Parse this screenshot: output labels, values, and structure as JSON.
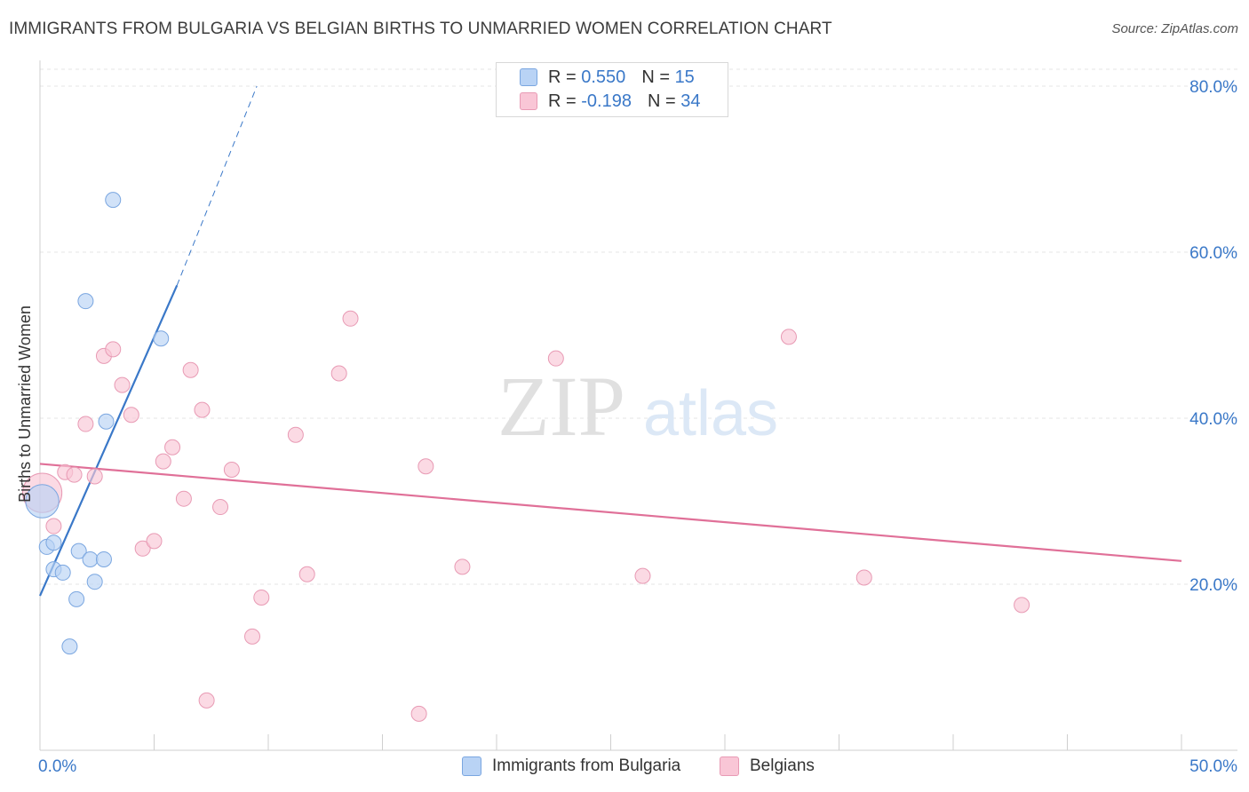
{
  "title": "IMMIGRANTS FROM BULGARIA VS BELGIAN BIRTHS TO UNMARRIED WOMEN CORRELATION CHART",
  "source": "Source: ZipAtlas.com",
  "watermark": {
    "zip": "ZIP",
    "atlas": "atlas"
  },
  "legend_top": {
    "series1": {
      "r_label": "R =",
      "r_value": "0.550",
      "n_label": "N =",
      "n_value": "15"
    },
    "series2": {
      "r_label": "R =",
      "r_value": "-0.198",
      "n_label": "N =",
      "n_value": "34"
    }
  },
  "chart_data": {
    "type": "scatter",
    "title": "IMMIGRANTS FROM BULGARIA VS BELGIAN BIRTHS TO UNMARRIED WOMEN CORRELATION CHART",
    "xlabel": "",
    "ylabel": "Births to Unmarried Women",
    "xlim": [
      0,
      50
    ],
    "ylim": [
      0,
      80
    ],
    "x_tick_labels": [
      "0.0%",
      "50.0%"
    ],
    "y_tick_labels": [
      "20.0%",
      "40.0%",
      "60.0%",
      "80.0%"
    ],
    "y_ticks": [
      20,
      40,
      60,
      80
    ],
    "colors": {
      "series1": "#3a78c8",
      "series2": "#e07098",
      "series1_fill": "#b9d3f5",
      "series2_fill": "#f9c6d6"
    },
    "series": [
      {
        "name": "Immigrants from Bulgaria",
        "r": 0.55,
        "n": 15,
        "trend": {
          "x0": 0.0,
          "y0": 18.6,
          "x1": 6.0,
          "y1": 56.0,
          "dash_to_x": 9.5,
          "dash_to_y": 80.0
        },
        "points": [
          [
            0.1,
            30.0,
            2.2
          ],
          [
            0.3,
            24.5,
            1
          ],
          [
            0.6,
            25.0,
            1
          ],
          [
            0.6,
            21.8,
            1
          ],
          [
            1.0,
            21.4,
            1
          ],
          [
            1.3,
            12.5,
            1
          ],
          [
            1.6,
            18.2,
            1
          ],
          [
            1.7,
            24.0,
            1
          ],
          [
            2.2,
            23.0,
            1
          ],
          [
            2.4,
            20.3,
            1
          ],
          [
            2.8,
            23.0,
            1
          ],
          [
            2.9,
            39.6,
            1
          ],
          [
            3.2,
            66.3,
            1
          ],
          [
            2.0,
            54.1,
            1
          ],
          [
            5.3,
            49.6,
            1
          ]
        ]
      },
      {
        "name": "Belgians",
        "r": -0.198,
        "n": 34,
        "trend": {
          "x0": 0.0,
          "y0": 34.5,
          "x1": 50.0,
          "y1": 22.8
        },
        "points": [
          [
            0.1,
            31.0,
            2.6
          ],
          [
            0.6,
            27.0,
            1
          ],
          [
            1.1,
            33.5,
            1
          ],
          [
            1.5,
            33.2,
            1
          ],
          [
            2.0,
            39.3,
            1
          ],
          [
            2.4,
            33.0,
            1
          ],
          [
            2.8,
            47.5,
            1
          ],
          [
            3.2,
            48.3,
            1
          ],
          [
            3.6,
            44.0,
            1
          ],
          [
            4.0,
            40.4,
            1
          ],
          [
            4.5,
            24.3,
            1
          ],
          [
            5.0,
            25.2,
            1
          ],
          [
            5.4,
            34.8,
            1
          ],
          [
            5.8,
            36.5,
            1
          ],
          [
            6.3,
            30.3,
            1
          ],
          [
            6.6,
            45.8,
            1
          ],
          [
            7.1,
            41.0,
            1
          ],
          [
            7.3,
            6.0,
            1
          ],
          [
            7.9,
            29.3,
            1
          ],
          [
            8.4,
            33.8,
            1
          ],
          [
            9.3,
            13.7,
            1
          ],
          [
            9.7,
            18.4,
            1
          ],
          [
            11.2,
            38.0,
            1
          ],
          [
            11.7,
            21.2,
            1
          ],
          [
            13.1,
            45.4,
            1
          ],
          [
            13.6,
            52.0,
            1
          ],
          [
            16.6,
            4.4,
            1
          ],
          [
            16.9,
            34.2,
            1
          ],
          [
            18.5,
            22.1,
            1
          ],
          [
            22.6,
            47.2,
            1
          ],
          [
            26.4,
            21.0,
            1
          ],
          [
            32.8,
            49.8,
            1
          ],
          [
            36.1,
            20.8,
            1
          ],
          [
            43.0,
            17.5,
            1
          ]
        ]
      }
    ]
  },
  "legend_bottom": {
    "series1": "Immigrants from Bulgaria",
    "series2": "Belgians"
  }
}
